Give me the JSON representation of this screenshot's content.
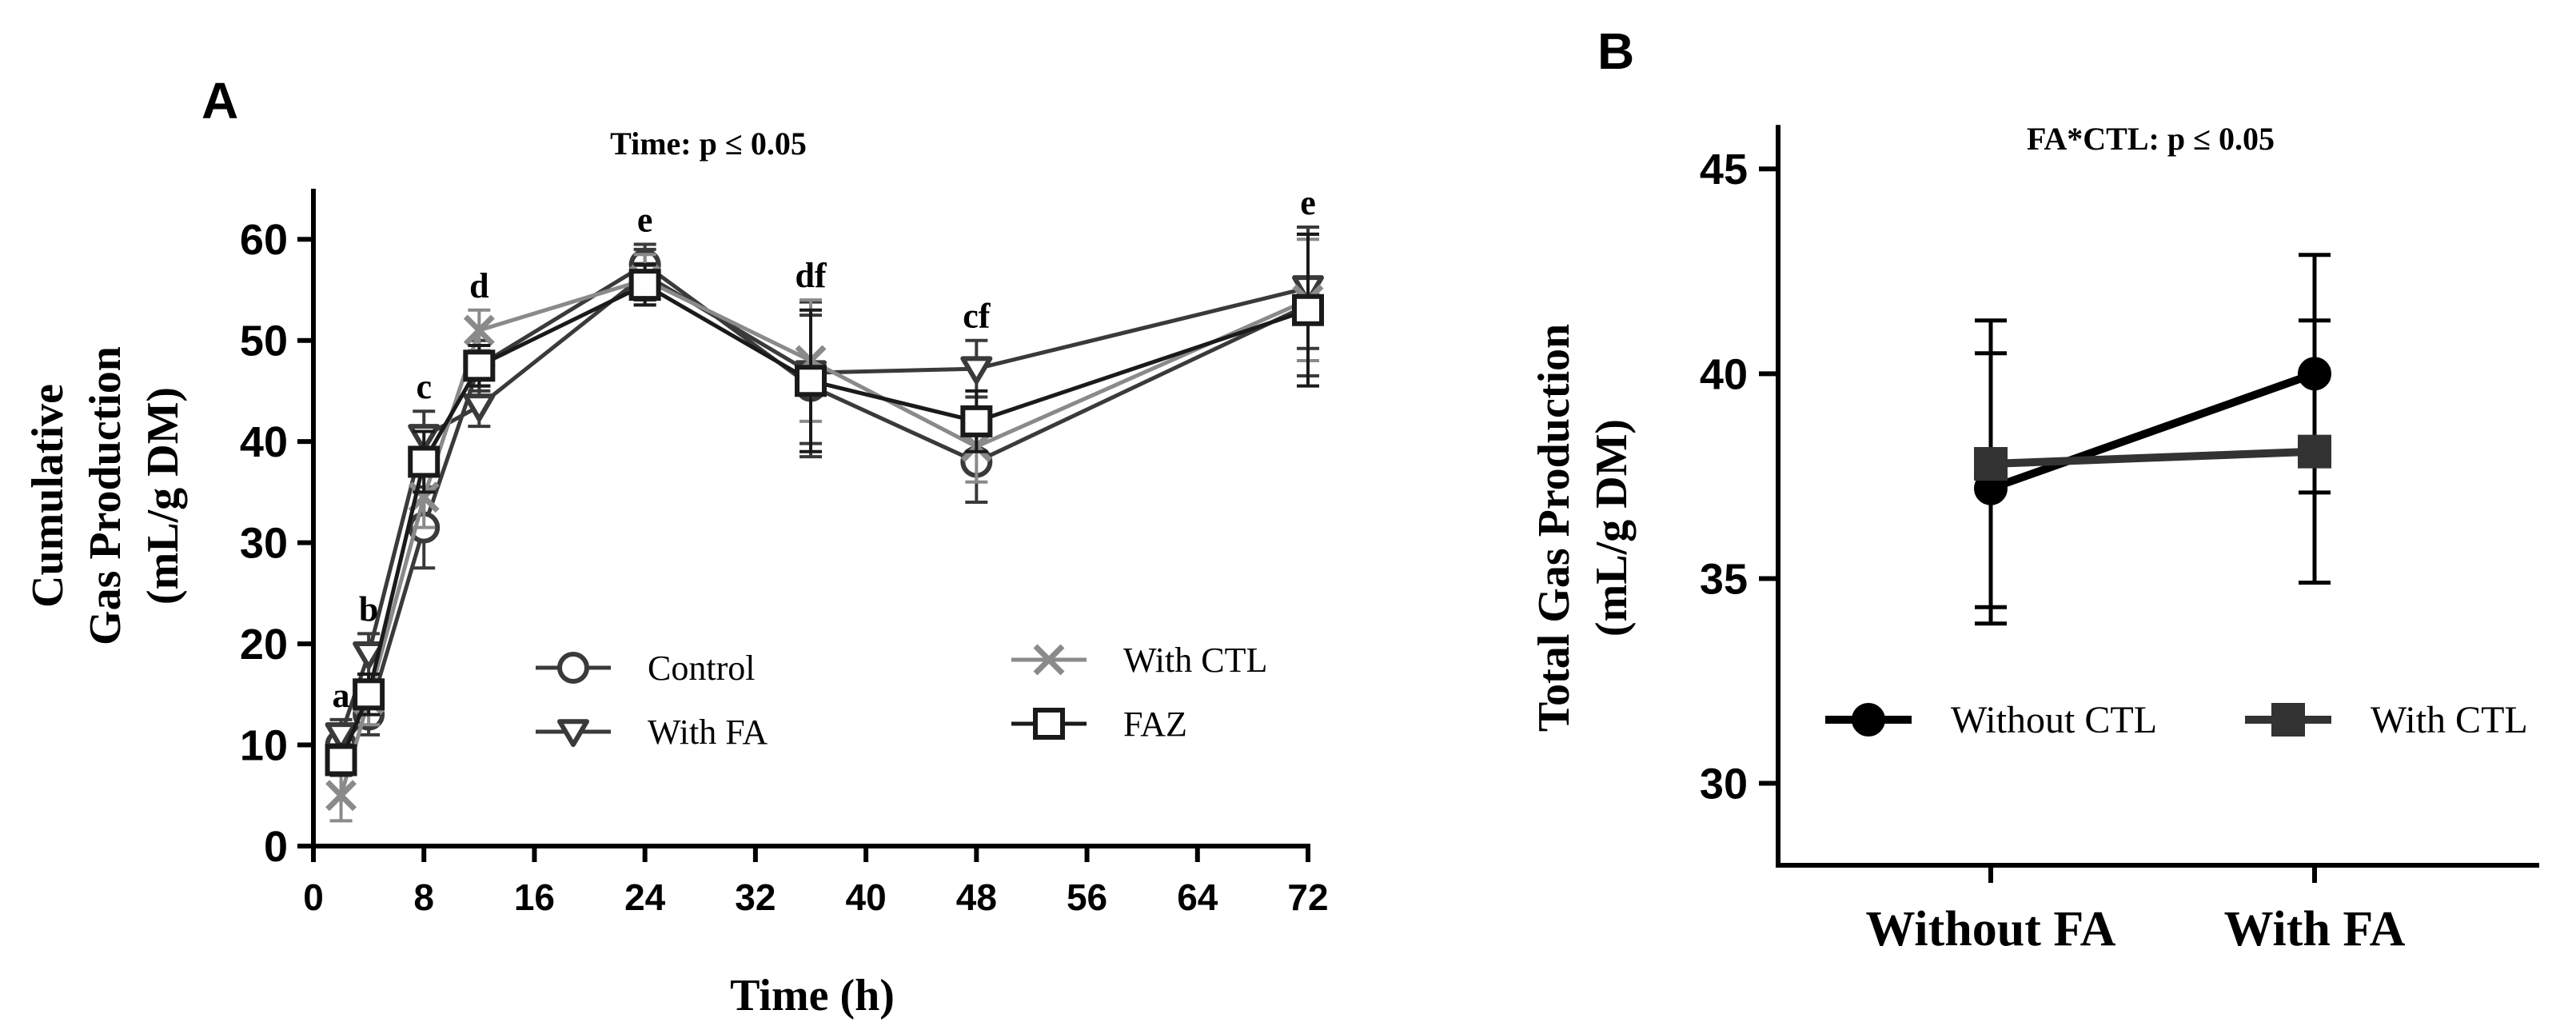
{
  "chart_data": [
    {
      "type": "line",
      "panel_label": "A",
      "title": "Time: p ≤ 0.05",
      "xlabel": "Time (h)",
      "ylabel_line1": "Cumulative",
      "ylabel_line2": "Gas Production",
      "ylabel_line3": "(mL/g DM)",
      "x_ticks": [
        0,
        8,
        16,
        24,
        32,
        40,
        48,
        56,
        64,
        72
      ],
      "x_tick_labels": [
        "0",
        "8",
        "16",
        "24",
        "32",
        "40",
        "48",
        "56",
        "64",
        "72"
      ],
      "y_ticks": [
        0,
        10,
        20,
        30,
        40,
        50,
        60
      ],
      "y_tick_labels": [
        "0",
        "10",
        "20",
        "30",
        "40",
        "50",
        "60"
      ],
      "xlim": [
        0,
        72
      ],
      "ylim": [
        0,
        65
      ],
      "x": [
        2,
        4,
        8,
        12,
        24,
        36,
        48,
        72
      ],
      "series": [
        {
          "name": "Control",
          "marker": "circle",
          "color": "#3a3a3a",
          "values": [
            10.0,
            13.0,
            31.5,
            47.5,
            57.5,
            45.5,
            38.0,
            53.5
          ],
          "errors": [
            1.5,
            2.0,
            4.0,
            2.5,
            2.0,
            7.0,
            4.0,
            7.0
          ]
        },
        {
          "name": "With FA",
          "marker": "triangle-down",
          "color": "#3a3a3a",
          "values": [
            11.0,
            19.0,
            40.5,
            43.5,
            56.5,
            46.8,
            47.2,
            55.2
          ],
          "errors": [
            1.5,
            2.0,
            2.5,
            2.0,
            2.5,
            7.0,
            2.8,
            6.0
          ]
        },
        {
          "name": "With CTL",
          "marker": "x",
          "color": "#8a8a8a",
          "values": [
            5.0,
            14.5,
            34.5,
            51.0,
            56.0,
            48.0,
            39.5,
            54.0
          ],
          "errors": [
            2.5,
            2.5,
            3.0,
            2.0,
            2.5,
            6.0,
            3.5,
            6.0
          ]
        },
        {
          "name": "FAZ",
          "marker": "square",
          "color": "#1a1a1a",
          "values": [
            8.5,
            15.0,
            38.0,
            47.5,
            55.5,
            46.0,
            42.0,
            53.0
          ],
          "errors": [
            1.5,
            2.0,
            3.0,
            2.0,
            2.0,
            7.0,
            3.0,
            7.5
          ]
        }
      ],
      "annotations": [
        {
          "x": 2,
          "label": "a"
        },
        {
          "x": 4,
          "label": "b"
        },
        {
          "x": 8,
          "label": "c"
        },
        {
          "x": 12,
          "label": "d"
        },
        {
          "x": 24,
          "label": "e"
        },
        {
          "x": 36,
          "label": "df"
        },
        {
          "x": 48,
          "label": "cf"
        },
        {
          "x": 72,
          "label": "e"
        }
      ],
      "legend": [
        "Control",
        "With FA",
        "With CTL",
        "FAZ"
      ]
    },
    {
      "type": "line",
      "panel_label": "B",
      "title": "FA*CTL: p ≤ 0.05",
      "ylabel_line1": "Total Gas Production",
      "ylabel_line2": "(mL/g DM)",
      "categories": [
        "Without FA",
        "With FA"
      ],
      "y_ticks": [
        30,
        35,
        40,
        45
      ],
      "y_tick_labels": [
        "30",
        "35",
        "40",
        "45"
      ],
      "ylim": [
        28,
        46
      ],
      "series": [
        {
          "name": "Without CTL",
          "marker": "circle",
          "color": "#000000",
          "values": [
            37.2,
            40.0
          ],
          "errors": [
            3.3,
            2.9
          ]
        },
        {
          "name": "With CTL",
          "marker": "square",
          "color": "#333333",
          "values": [
            37.8,
            38.1
          ],
          "errors": [
            3.5,
            3.2
          ]
        }
      ],
      "legend": [
        "Without CTL",
        "With CTL"
      ]
    }
  ]
}
